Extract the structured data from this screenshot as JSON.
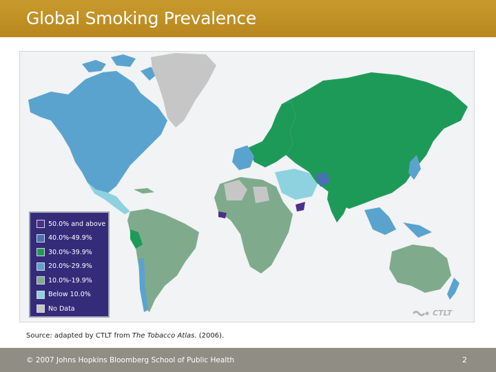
{
  "title": "Global Smoking Prevalence",
  "legend": [
    {
      "label": "50.0% and above",
      "color": "#4b2f8c"
    },
    {
      "label": "40.0%-49.9%",
      "color": "#4a6fb5"
    },
    {
      "label": "30.0%-39.9%",
      "color": "#1e9a58"
    },
    {
      "label": "20.0%-29.9%",
      "color": "#5ba3cf"
    },
    {
      "label": "10.0%-19.9%",
      "color": "#7fab8c"
    },
    {
      "label": "Below 10.0%",
      "color": "#8ed2e0"
    },
    {
      "label": "No Data",
      "color": "#c6c6c6"
    }
  ],
  "logo": "CTLT",
  "source": {
    "prefix": "Source: adapted by CTLT from ",
    "italic": "The Tobacco Atlas.",
    "suffix": " (2006)."
  },
  "footer": {
    "copyright": "© 2007 Johns Hopkins Bloomberg School of Public Health",
    "page_number": "2"
  }
}
